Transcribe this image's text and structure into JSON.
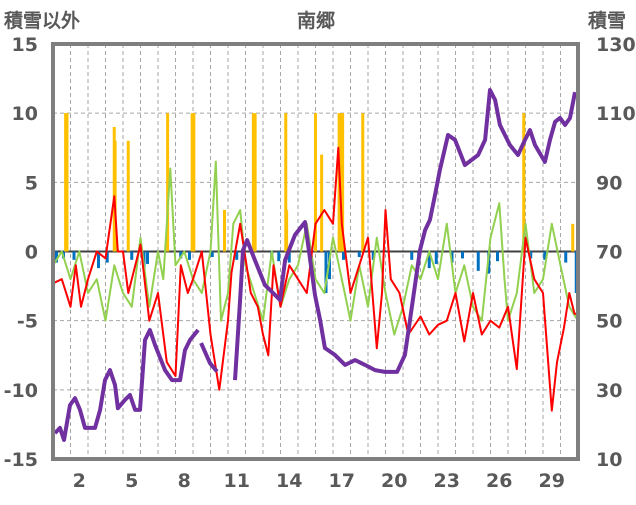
{
  "chart_data": {
    "type": "line",
    "title": "南郷",
    "ylabel_left": "積雪以外",
    "ylabel_right": "積雪",
    "xlim": [
      0,
      30
    ],
    "ylim_left": [
      -15,
      15
    ],
    "ylim_right": [
      10,
      130
    ],
    "yticks_left": [
      15,
      10,
      5,
      0,
      -5,
      -10,
      -15
    ],
    "yticks_right": [
      130,
      110,
      90,
      70,
      50,
      30,
      10
    ],
    "xtick_labels": [
      "2",
      "5",
      "8",
      "11",
      "14",
      "17",
      "20",
      "23",
      "26",
      "29"
    ],
    "xtick_days": [
      2,
      5,
      8,
      11,
      14,
      17,
      20,
      23,
      26,
      29
    ],
    "grid": true,
    "colors": {
      "snow": "#7030a0",
      "red": "#ff0000",
      "green": "#92d050",
      "orange": "#ffc000",
      "blue": "#0070c0",
      "frame": "#7f7f7f",
      "grid": "#a6a6a6"
    },
    "series": [
      {
        "key": "green",
        "axis": "left",
        "kind": "line",
        "points": [
          [
            0,
            -1
          ],
          [
            0.5,
            0
          ],
          [
            1,
            -2
          ],
          [
            1.5,
            0
          ],
          [
            2,
            -3
          ],
          [
            2.5,
            -2
          ],
          [
            3,
            -5
          ],
          [
            3.5,
            -1
          ],
          [
            4,
            -3
          ],
          [
            4.5,
            -4
          ],
          [
            5,
            1
          ],
          [
            5.5,
            -4
          ],
          [
            6,
            0
          ],
          [
            6.3,
            -2
          ],
          [
            6.7,
            6
          ],
          [
            7,
            -1
          ],
          [
            7.5,
            0
          ],
          [
            8,
            -2
          ],
          [
            8.5,
            -3
          ],
          [
            9,
            0
          ],
          [
            9.3,
            6.5
          ],
          [
            9.6,
            -5
          ],
          [
            10,
            -3
          ],
          [
            10.3,
            2
          ],
          [
            10.7,
            3
          ],
          [
            11,
            -1
          ],
          [
            11.5,
            -3
          ],
          [
            12,
            -5
          ],
          [
            12.5,
            0
          ],
          [
            13,
            -4
          ],
          [
            13.5,
            -2
          ],
          [
            14,
            -1
          ],
          [
            14.5,
            2
          ],
          [
            15,
            -2
          ],
          [
            15.5,
            -3
          ],
          [
            16,
            1
          ],
          [
            16.5,
            -2
          ],
          [
            17,
            -5
          ],
          [
            17.5,
            -1
          ],
          [
            18,
            -4
          ],
          [
            18.5,
            1
          ],
          [
            19,
            -3
          ],
          [
            19.5,
            -6
          ],
          [
            20,
            -4
          ],
          [
            20.5,
            -1
          ],
          [
            21,
            -2
          ],
          [
            21.5,
            0
          ],
          [
            22,
            -2
          ],
          [
            22.5,
            2
          ],
          [
            23,
            -3
          ],
          [
            23.5,
            -1
          ],
          [
            24,
            -4
          ],
          [
            24.5,
            -5
          ],
          [
            25,
            1
          ],
          [
            25.5,
            3.5
          ],
          [
            25.8,
            -2
          ],
          [
            26,
            -5
          ],
          [
            26.5,
            -3
          ],
          [
            27,
            2
          ],
          [
            27.5,
            -3
          ],
          [
            28,
            -2
          ],
          [
            28.5,
            2
          ],
          [
            29,
            -1
          ],
          [
            29.5,
            -4
          ],
          [
            30,
            -5
          ]
        ]
      },
      {
        "key": "red",
        "axis": "left",
        "kind": "line",
        "points": [
          [
            0,
            -2.3
          ],
          [
            0.5,
            -2
          ],
          [
            1,
            -4
          ],
          [
            1.3,
            -1
          ],
          [
            1.6,
            -4
          ],
          [
            2,
            -2
          ],
          [
            2.5,
            0
          ],
          [
            3,
            -0.5
          ],
          [
            3.5,
            4
          ],
          [
            3.7,
            0
          ],
          [
            4,
            0
          ],
          [
            4.3,
            -3
          ],
          [
            5,
            0.5
          ],
          [
            5.5,
            -5
          ],
          [
            6,
            -3
          ],
          [
            6.5,
            -8
          ],
          [
            7,
            -9
          ],
          [
            7.3,
            -1
          ],
          [
            7.7,
            -3
          ],
          [
            8,
            -2
          ],
          [
            8.5,
            0
          ],
          [
            9,
            -6
          ],
          [
            9.5,
            -10
          ],
          [
            10,
            -5
          ],
          [
            10.2,
            -1.5
          ],
          [
            10.7,
            2
          ],
          [
            11.3,
            -3
          ],
          [
            11.7,
            -4
          ],
          [
            12,
            -6
          ],
          [
            12.3,
            -7.5
          ],
          [
            12.6,
            -1
          ],
          [
            13,
            -4
          ],
          [
            13.5,
            -1
          ],
          [
            14,
            -2
          ],
          [
            14.5,
            -3
          ],
          [
            15,
            2
          ],
          [
            15.5,
            3
          ],
          [
            16,
            2
          ],
          [
            16.3,
            7.5
          ],
          [
            16.5,
            2
          ],
          [
            17,
            -3
          ],
          [
            17.5,
            -1
          ],
          [
            18,
            1
          ],
          [
            18.5,
            -7
          ],
          [
            18.8,
            -3
          ],
          [
            19,
            3
          ],
          [
            19.3,
            -2
          ],
          [
            19.8,
            -3
          ],
          [
            20.3,
            -6
          ],
          [
            21,
            -4.7
          ],
          [
            21.5,
            -6
          ],
          [
            22,
            -5.3
          ],
          [
            22.5,
            -5
          ],
          [
            23,
            -3
          ],
          [
            23.5,
            -6.5
          ],
          [
            24,
            -3
          ],
          [
            24.5,
            -6
          ],
          [
            25,
            -5
          ],
          [
            25.5,
            -5.5
          ],
          [
            26,
            -4
          ],
          [
            26.5,
            -8.5
          ],
          [
            27,
            1
          ],
          [
            27.5,
            -2
          ],
          [
            28,
            -3
          ],
          [
            28.5,
            -11.5
          ],
          [
            28.8,
            -8
          ],
          [
            29.2,
            -5.5
          ],
          [
            29.5,
            -3
          ],
          [
            29.8,
            -4.5
          ],
          [
            30,
            -4.5
          ]
        ]
      },
      {
        "key": "snow",
        "axis": "right",
        "kind": "line",
        "points": [
          [
            0.11,
            17.5
          ],
          [
            0.4,
            19
          ],
          [
            0.63,
            15.5
          ],
          [
            0.97,
            25.6
          ],
          [
            1.26,
            27.6
          ],
          [
            1.54,
            24.2
          ],
          [
            1.83,
            19
          ],
          [
            2.4,
            19
          ],
          [
            2.69,
            24.2
          ],
          [
            2.97,
            32.8
          ],
          [
            3.26,
            35.7
          ],
          [
            3.54,
            31.4
          ],
          [
            3.71,
            24.7
          ],
          [
            4.11,
            27.1
          ],
          [
            4.4,
            28.5
          ],
          [
            4.69,
            24.2
          ],
          [
            4.97,
            24.2
          ],
          [
            5.26,
            44.4
          ],
          [
            5.54,
            47.3
          ],
          [
            5.83,
            43
          ],
          [
            6.4,
            35.7
          ],
          [
            6.8,
            32.8
          ],
          [
            7.26,
            32.8
          ],
          [
            7.54,
            41.5
          ],
          [
            7.83,
            44.4
          ],
          [
            8.29,
            47.3
          ],
          null,
          [
            8.46,
            43.5
          ],
          [
            8.97,
            37.7
          ],
          [
            9.37,
            35.3
          ],
          null,
          [
            10.4,
            32.8
          ],
          [
            10.69,
            56
          ],
          [
            10.86,
            70.4
          ],
          [
            11.09,
            73.3
          ],
          [
            11.54,
            67.5
          ],
          [
            12.11,
            60.3
          ],
          [
            12.4,
            58.9
          ],
          [
            12.97,
            56
          ],
          [
            13.26,
            67.5
          ],
          [
            13.83,
            74.8
          ],
          [
            14.4,
            78.5
          ],
          [
            14.97,
            57.4
          ],
          [
            15.26,
            50.2
          ],
          [
            15.54,
            42.1
          ],
          [
            16.11,
            40.1
          ],
          [
            16.69,
            37.2
          ],
          [
            17.26,
            38.6
          ],
          [
            17.83,
            37.2
          ],
          [
            18.4,
            35.7
          ],
          [
            18.97,
            35.2
          ],
          [
            19.66,
            35.2
          ],
          [
            20.11,
            40.1
          ],
          [
            20.4,
            50.2
          ],
          [
            20.97,
            70.4
          ],
          [
            21.26,
            76.2
          ],
          [
            21.54,
            79.1
          ],
          [
            21.83,
            86.3
          ],
          [
            22.11,
            93.6
          ],
          [
            22.57,
            103.7
          ],
          [
            22.97,
            102.3
          ],
          [
            23.54,
            95
          ],
          [
            24.29,
            97.9
          ],
          [
            24.69,
            102.3
          ],
          [
            24.97,
            116.7
          ],
          [
            25.26,
            113.8
          ],
          [
            25.54,
            106.6
          ],
          [
            26.11,
            100.8
          ],
          [
            26.57,
            97.9
          ],
          [
            26.97,
            102.3
          ],
          [
            27.26,
            105.1
          ],
          [
            27.54,
            100.8
          ],
          [
            28.11,
            95.9
          ],
          [
            28.4,
            102.3
          ],
          [
            28.69,
            107.5
          ],
          [
            28.97,
            108.6
          ],
          [
            29.26,
            106.6
          ],
          [
            29.54,
            108.6
          ],
          [
            29.83,
            116.1
          ]
        ]
      },
      {
        "key": "orange",
        "axis": "left",
        "kind": "bar",
        "points": [
          [
            0.72,
            10
          ],
          [
            0.8,
            10
          ],
          [
            3.5,
            9
          ],
          [
            3.55,
            8
          ],
          [
            4.3,
            8
          ],
          [
            6.55,
            10
          ],
          [
            7.95,
            10
          ],
          [
            8.05,
            10
          ],
          [
            9.8,
            3
          ],
          [
            11.45,
            10
          ],
          [
            11.55,
            10
          ],
          [
            13.3,
            10
          ],
          [
            13.35,
            3
          ],
          [
            15,
            10
          ],
          [
            15.35,
            7
          ],
          [
            16.35,
            10
          ],
          [
            16.45,
            10
          ],
          [
            16.55,
            10
          ],
          [
            17.7,
            10
          ],
          [
            26.9,
            10
          ],
          [
            29.7,
            2
          ]
        ]
      },
      {
        "key": "blue",
        "axis": "left",
        "kind": "bar",
        "points": [
          [
            0.2,
            -0.8
          ],
          [
            0.6,
            -0.5
          ],
          [
            1.2,
            -0.6
          ],
          [
            2.6,
            -1.2
          ],
          [
            3.1,
            -0.8
          ],
          [
            4.5,
            -0.6
          ],
          [
            5.2,
            -1.3
          ],
          [
            5.4,
            -0.9
          ],
          [
            7.3,
            -0.5
          ],
          [
            7.8,
            -0.6
          ],
          [
            9.1,
            -0.4
          ],
          [
            10.5,
            -0.6
          ],
          [
            12.5,
            -0.4
          ],
          [
            12.9,
            -0.7
          ],
          [
            13.5,
            -0.8
          ],
          [
            14.7,
            -0.4
          ],
          [
            15.6,
            -3
          ],
          [
            15.8,
            -2
          ],
          [
            16.6,
            -0.6
          ],
          [
            17.5,
            -0.4
          ],
          [
            18.3,
            -0.6
          ],
          [
            20.5,
            -0.6
          ],
          [
            20.9,
            -1
          ],
          [
            21.5,
            -1.2
          ],
          [
            21.9,
            -0.9
          ],
          [
            22.8,
            -0.8
          ],
          [
            23.4,
            -0.5
          ],
          [
            24.3,
            -1.4
          ],
          [
            24.9,
            -1.6
          ],
          [
            25.4,
            -0.7
          ],
          [
            27.3,
            -0.5
          ],
          [
            28.1,
            -0.6
          ],
          [
            29.3,
            -0.8
          ],
          [
            29.9,
            -3
          ]
        ]
      }
    ]
  }
}
